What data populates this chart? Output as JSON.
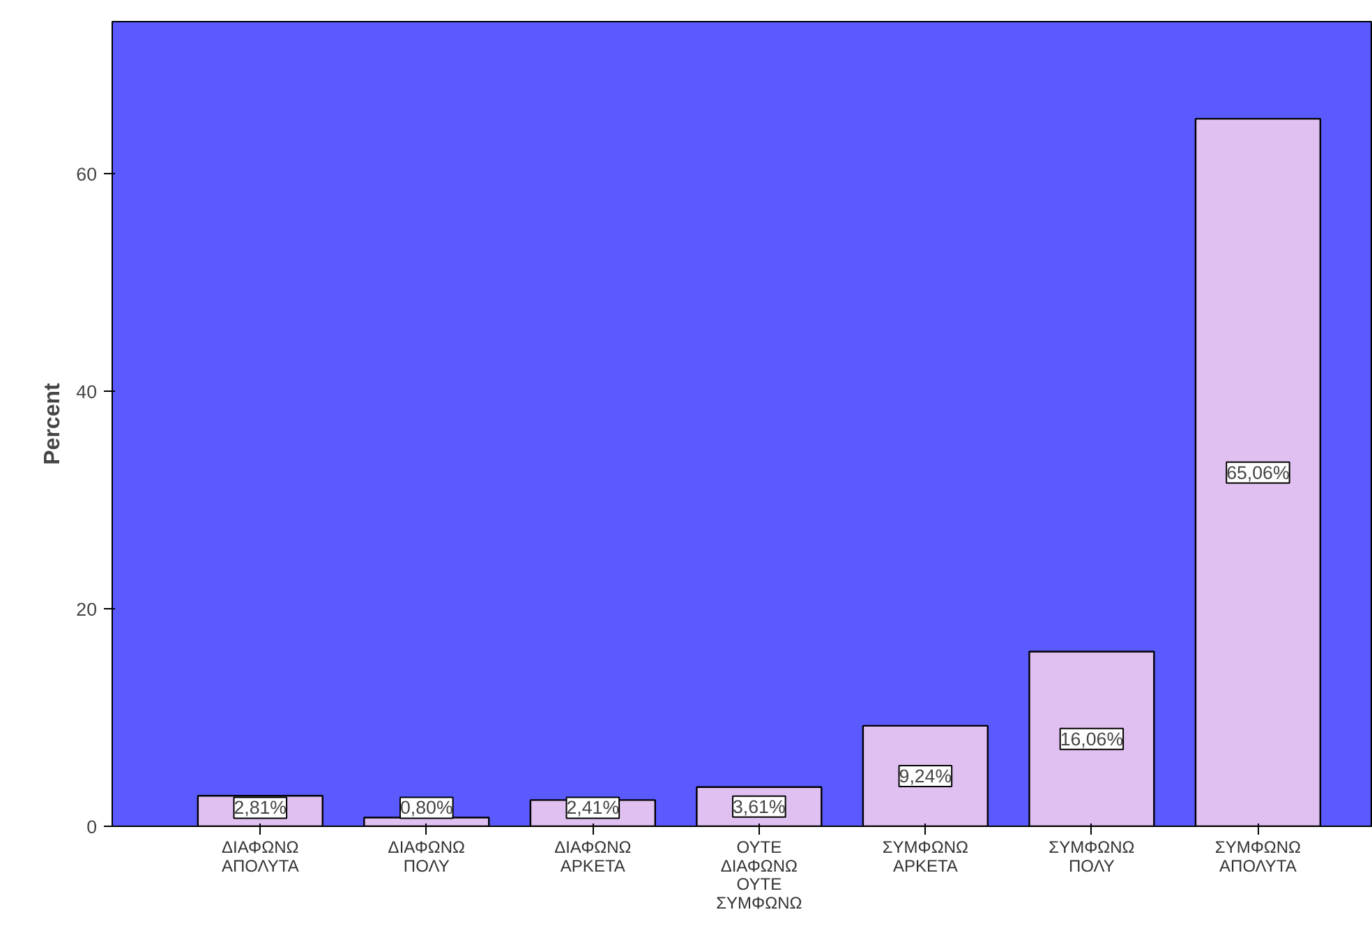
{
  "chart_data": {
    "type": "bar",
    "ylabel": "Percent",
    "categories": [
      "ΔΙΑΦΩΝΩ ΑΠΟΛΥΤΑ",
      "ΔΙΑΦΩΝΩ ΠΟΛΥ",
      "ΔΙΑΦΩΝΩ ΑΡΚΕΤΑ",
      "ΟΥΤΕ ΔΙΑΦΩΝΩ ΟΥΤΕ ΣΥΜΦΩΝΩ",
      "ΣΥΜΦΩΝΩ ΑΡΚΕΤΑ",
      "ΣΥΜΦΩΝΩ ΠΟΛΥ",
      "ΣΥΜΦΩΝΩ ΑΠΟΛΥΤΑ"
    ],
    "values": [
      2.81,
      0.8,
      2.41,
      3.61,
      9.24,
      16.06,
      65.06
    ],
    "value_labels": [
      "2,81%",
      "0,80%",
      "2,41%",
      "3,61%",
      "9,24%",
      "16,06%",
      "65,06%"
    ],
    "color": "#e0c0f0",
    "ylim": [
      0,
      74
    ],
    "yticks": [
      0,
      20,
      40,
      60
    ],
    "grid": false
  }
}
